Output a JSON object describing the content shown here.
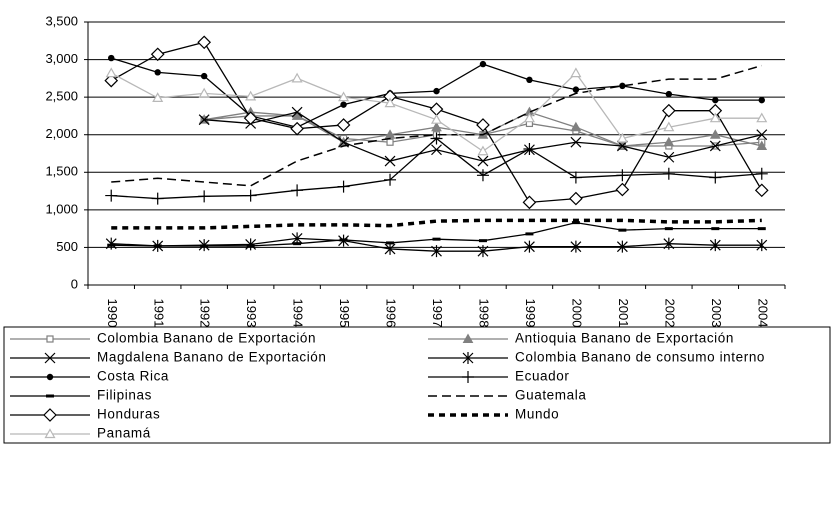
{
  "chart_data": {
    "type": "line",
    "categories": [
      "1990",
      "1991",
      "1992",
      "1993",
      "1994",
      "1995",
      "1996",
      "1997",
      "1998",
      "1999",
      "2000",
      "2001",
      "2002",
      "2003",
      "2004"
    ],
    "ylim": [
      0,
      3500
    ],
    "yticks": [
      0,
      {
        "value": 500,
        "label": "500"
      },
      {
        "value": 1000,
        "label": "1,000"
      },
      {
        "value": 1500,
        "label": "1,500"
      },
      {
        "value": 2000,
        "label": "2,000"
      },
      {
        "value": 2500,
        "label": "2,500"
      },
      {
        "value": 3000,
        "label": "3,000"
      },
      {
        "value": 3500,
        "label": "3,500"
      }
    ],
    "grid": true,
    "series": [
      {
        "name": "Colombia Banano de Exportación",
        "color": "#808080",
        "marker": "square",
        "dash": "solid",
        "values": [
          null,
          null,
          2200,
          2250,
          2250,
          1950,
          1900,
          2000,
          2000,
          2150,
          2050,
          1850,
          1850,
          1850,
          1900
        ]
      },
      {
        "name": "Antioquia Banano de Exportación",
        "color": "#808080",
        "marker": "triangle-filled",
        "dash": "solid",
        "values": [
          null,
          null,
          2200,
          2300,
          2250,
          1900,
          2000,
          2100,
          2000,
          2300,
          2100,
          1850,
          1900,
          2000,
          1850
        ]
      },
      {
        "name": "Magdalena Banano de Exportación",
        "color": "#000000",
        "marker": "x",
        "dash": "solid",
        "values": [
          null,
          null,
          2200,
          2150,
          2300,
          1900,
          1650,
          1800,
          1650,
          1800,
          1900,
          1850,
          1700,
          1850,
          2000
        ]
      },
      {
        "name": "Colombia Banano de consumo interno",
        "color": "#000000",
        "marker": "asterisk",
        "dash": "solid",
        "values": [
          550,
          520,
          530,
          540,
          620,
          590,
          480,
          450,
          450,
          510,
          510,
          510,
          550,
          530,
          530
        ]
      },
      {
        "name": "Costa Rica",
        "color": "#000000",
        "marker": "dot",
        "dash": "solid",
        "values": [
          3020,
          2830,
          2780,
          2250,
          2100,
          2400,
          2550,
          2580,
          2940,
          2730,
          2600,
          2650,
          2540,
          2460,
          2460
        ]
      },
      {
        "name": "Ecuador",
        "color": "#000000",
        "marker": "plus",
        "dash": "solid",
        "values": [
          1190,
          1150,
          1180,
          1190,
          1260,
          1310,
          1400,
          1950,
          1460,
          1810,
          1430,
          1460,
          1480,
          1430,
          1480
        ]
      },
      {
        "name": "Filipinas",
        "color": "#000000",
        "marker": "dash",
        "dash": "solid",
        "values": [
          530,
          520,
          520,
          520,
          550,
          600,
          560,
          610,
          590,
          680,
          830,
          730,
          750,
          750,
          750
        ]
      },
      {
        "name": "Guatemala",
        "color": "#000000",
        "marker": "none",
        "dash": "dashed",
        "values": [
          1370,
          1420,
          1370,
          1320,
          1650,
          1850,
          1950,
          2000,
          2000,
          2300,
          2550,
          2650,
          2740,
          2740,
          2920
        ]
      },
      {
        "name": "Honduras",
        "color": "#000000",
        "marker": "diamond",
        "dash": "solid",
        "values": [
          2720,
          3070,
          3230,
          2220,
          2080,
          2130,
          2510,
          2340,
          2130,
          1100,
          1150,
          1270,
          2320,
          2320,
          1260
        ]
      },
      {
        "name": "Mundo",
        "color": "#000000",
        "marker": "none",
        "dash": "dotted-thick",
        "values": [
          760,
          760,
          760,
          780,
          800,
          800,
          790,
          850,
          860,
          860,
          860,
          860,
          840,
          840,
          860
        ]
      },
      {
        "name": "Panamá",
        "color": "#b8b8b8",
        "marker": "triangle",
        "dash": "solid",
        "values": [
          2820,
          2490,
          2550,
          2510,
          2750,
          2500,
          2420,
          2200,
          1780,
          2220,
          2820,
          1950,
          2100,
          2220,
          2220
        ]
      }
    ]
  }
}
